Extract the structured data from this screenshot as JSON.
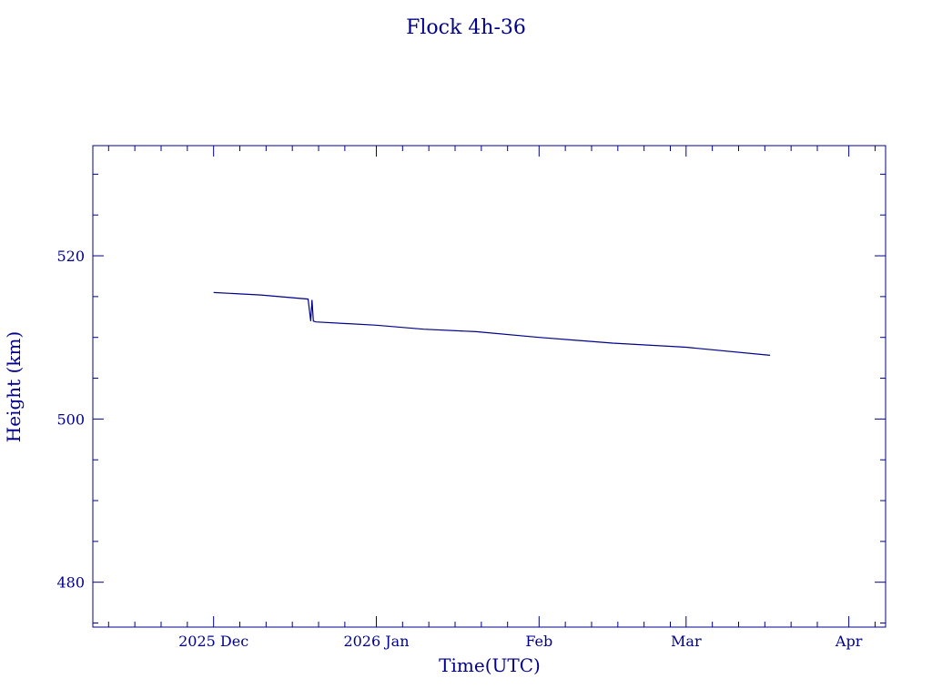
{
  "chart_data": {
    "type": "line",
    "title": "Flock 4h-36",
    "xlabel": "Time(UTC)",
    "ylabel": "Height (km)",
    "x_tick_labels": [
      "2025 Dec",
      "2026 Jan",
      "Feb",
      "Mar",
      "Apr"
    ],
    "x_ticks": [
      "2025-12-01",
      "2026-01-01",
      "2026-02-01",
      "2026-03-01",
      "2026-04-01"
    ],
    "xlim": [
      "2025-11-08",
      "2026-04-08"
    ],
    "y_tick_labels": [
      "480",
      "500",
      "520"
    ],
    "y_ticks": [
      480,
      500,
      520
    ],
    "ylim": [
      474.5,
      533.5
    ],
    "grid": false,
    "color": "#00008b",
    "series": [
      {
        "x": [
          "2025-12-01",
          "2025-12-10",
          "2025-12-19",
          "2025-12-19T12:00",
          "2025-12-19T18:00",
          "2025-12-20",
          "2025-12-20T12:00",
          "2026-01-01",
          "2026-01-10",
          "2026-01-20",
          "2026-02-01",
          "2026-02-15",
          "2026-03-01",
          "2026-03-17"
        ],
        "y": [
          515.5,
          515.2,
          514.7,
          512.0,
          514.6,
          512.0,
          511.9,
          511.5,
          511.0,
          510.7,
          510.0,
          509.3,
          508.8,
          507.8
        ]
      }
    ]
  }
}
